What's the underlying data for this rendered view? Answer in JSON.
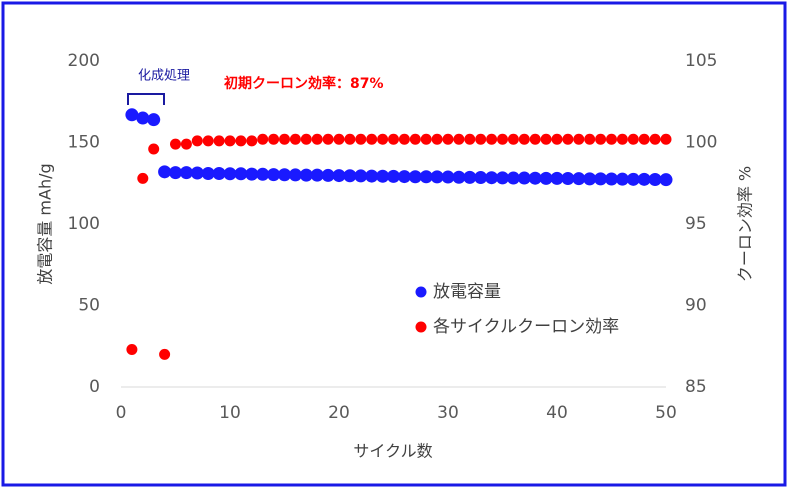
{
  "chart_data": {
    "type": "scatter",
    "x_label": "サイクル数",
    "y_label": "放電容量 mAh/g",
    "y2_label": "クーロン効率 %",
    "annotations": [
      "化成処理",
      "初期クーロン効率：87%"
    ],
    "x": [
      1,
      2,
      3,
      4,
      5,
      6,
      7,
      8,
      9,
      10,
      11,
      12,
      13,
      14,
      15,
      16,
      17,
      18,
      19,
      20,
      21,
      22,
      23,
      24,
      25,
      26,
      27,
      28,
      29,
      30,
      31,
      32,
      33,
      34,
      35,
      36,
      37,
      38,
      39,
      40,
      41,
      42,
      43,
      44,
      45,
      46,
      47,
      48,
      49,
      50
    ],
    "series": [
      {
        "name": "放電容量",
        "color": "#1a1aff",
        "values": [
          167,
          165,
          164,
          132,
          131.5,
          131.5,
          131.3,
          131,
          131,
          130.8,
          130.8,
          130.6,
          130.5,
          130.3,
          130.2,
          130.1,
          130,
          130,
          129.8,
          129.7,
          129.6,
          129.5,
          129.4,
          129.3,
          129.2,
          129.1,
          129,
          129,
          128.9,
          128.8,
          128.7,
          128.6,
          128.5,
          128.4,
          128.3,
          128.2,
          128.2,
          128.1,
          128,
          128,
          127.9,
          127.8,
          127.7,
          127.7,
          127.6,
          127.5,
          127.4,
          127.4,
          127.3,
          127.2
        ]
      },
      {
        "name": "各サイクルクーロン効率",
        "color": "#ff0000",
        "axis": "y2",
        "values": [
          87.3,
          97.8,
          99.6,
          87.0,
          99.9,
          99.9,
          100.1,
          100.1,
          100.1,
          100.1,
          100.1,
          100.1,
          100.2,
          100.2,
          100.2,
          100.2,
          100.2,
          100.2,
          100.2,
          100.2,
          100.2,
          100.2,
          100.2,
          100.2,
          100.2,
          100.2,
          100.2,
          100.2,
          100.2,
          100.2,
          100.2,
          100.2,
          100.2,
          100.2,
          100.2,
          100.2,
          100.2,
          100.2,
          100.2,
          100.2,
          100.2,
          100.2,
          100.2,
          100.2,
          100.2,
          100.2,
          100.2,
          100.2,
          100.2,
          100.2
        ]
      }
    ],
    "xlim": [
      0,
      50
    ],
    "xticks": [
      0,
      10,
      20,
      30,
      40,
      50
    ],
    "ylim": [
      0,
      200
    ],
    "yticks": [
      0,
      50,
      100,
      150,
      200
    ],
    "y2lim": [
      85,
      105
    ],
    "y2ticks": [
      85,
      90,
      95,
      100,
      105
    ],
    "grid": false
  }
}
